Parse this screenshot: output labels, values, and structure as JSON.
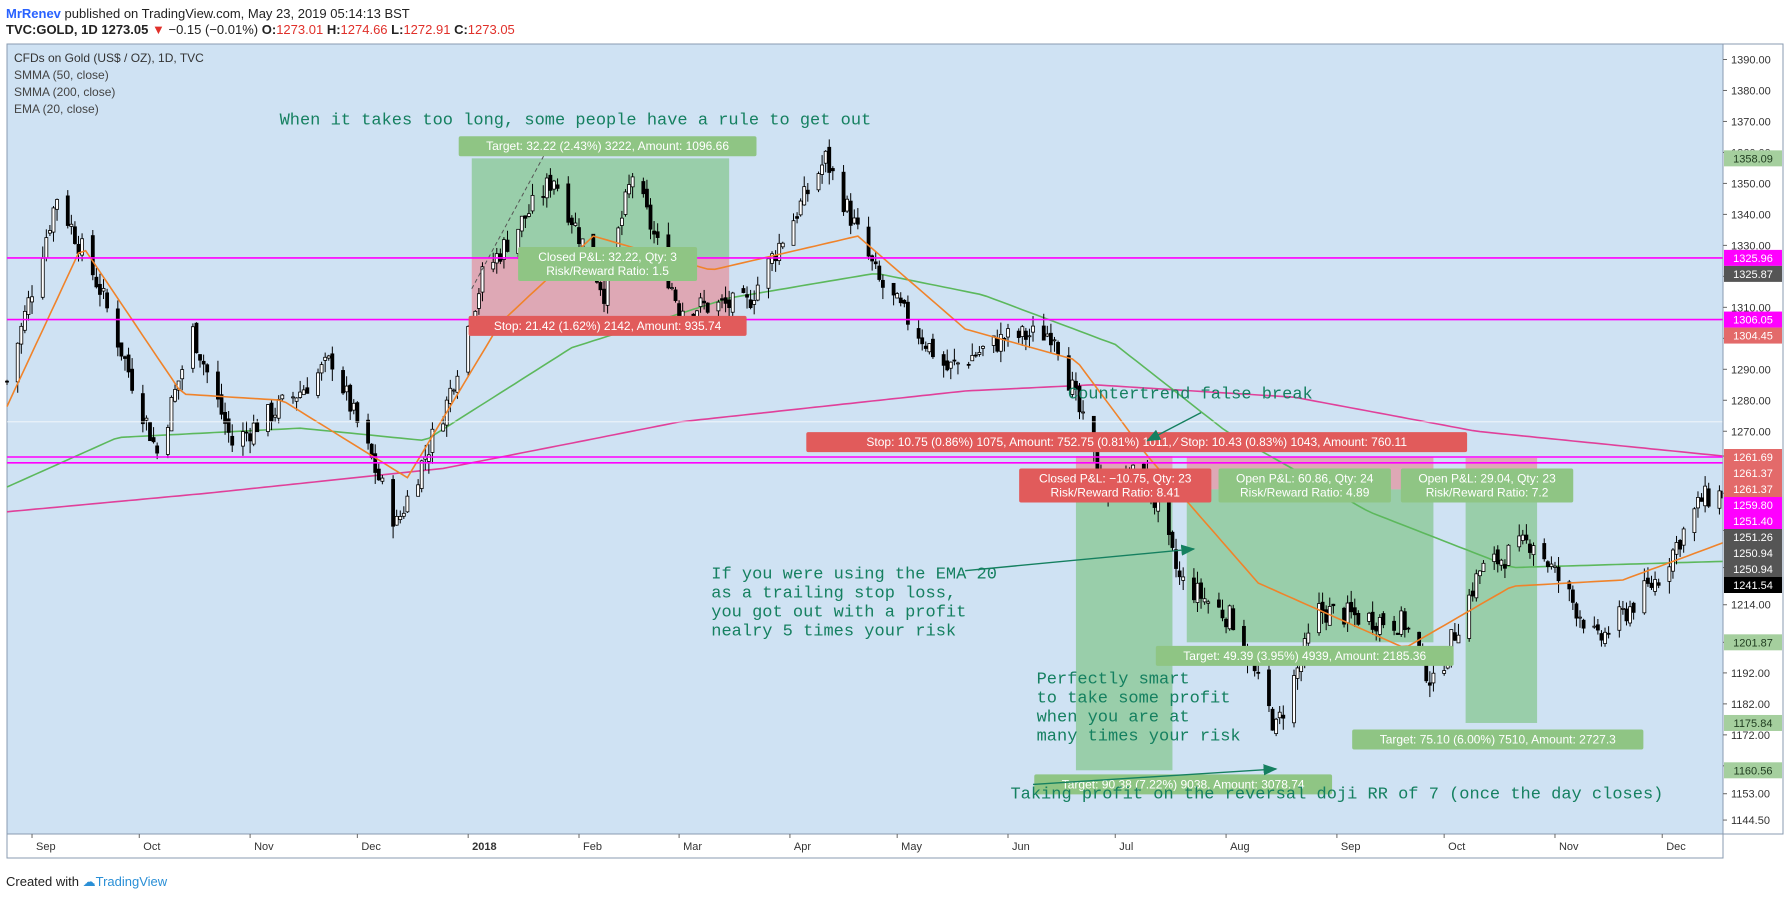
{
  "header": {
    "user": "MrRenev",
    "published": "published on TradingView.com, May 23, 2019 05:14:13 BST",
    "symbol": "TVC:GOLD, 1D",
    "last": "1273.05",
    "change": "−0.15 (−0.01%)",
    "o_label": "O:",
    "o_value": "1273.01",
    "h_label": "H:",
    "h_value": "1274.66",
    "l_label": "L:",
    "l_value": "1272.91",
    "c_label": "C:",
    "c_value": "1273.05"
  },
  "footer": {
    "created": "Created with",
    "brand": "TradingView"
  },
  "colors": {
    "background": "#cfe2f3",
    "candle": "#000000",
    "ema20": "#f0832a",
    "smma50": "#5cb85c",
    "smma200": "#e0409a",
    "level": "#ff00ff",
    "profit_zone": "rgba(110,190,110,0.55)",
    "loss_zone": "rgba(235,120,130,0.55)",
    "annotation": "#158060"
  },
  "chart_data": {
    "type": "candlestick",
    "title": "CFDs on Gold (US$ / OZ), 1D, TVC",
    "indicators": [
      "SMMA (50, close)",
      "SMMA (200, close)",
      "EMA (20, close)"
    ],
    "ylim": [
      1140,
      1395
    ],
    "y_ticks": [
      1144.5,
      1153.0,
      1162.0,
      1172.0,
      1182.0,
      1192.0,
      1201.87,
      1214.0,
      1226.0,
      1238.0,
      1250.0,
      1262.0,
      1270.0,
      1280.0,
      1290.0,
      1300.0,
      1310.0,
      1320.0,
      1330.0,
      1340.0,
      1350.0,
      1360.0,
      1370.0,
      1380.0,
      1390.0
    ],
    "y_tick_labels": [
      "1144.50",
      "1153.00",
      "1162.00",
      "1172.00",
      "1182.00",
      "1192.00",
      "1201.87",
      "1214.00",
      "1226.00",
      "1238.00",
      "1250.00",
      "1262.00",
      "1270.00",
      "1280.00",
      "1290.00",
      "1300.00",
      "1310.00",
      "1320.00",
      "1330.00",
      "1340.00",
      "1350.00",
      "1360.00",
      "1370.00",
      "1380.00",
      "1390.00"
    ],
    "x_range": [
      "2017-08-25",
      "2018-12-18"
    ],
    "x_ticks": [
      {
        "date": "2017-09-01",
        "label": "Sep",
        "bold": false
      },
      {
        "date": "2017-10-01",
        "label": "Oct",
        "bold": false
      },
      {
        "date": "2017-11-01",
        "label": "Nov",
        "bold": false
      },
      {
        "date": "2017-12-01",
        "label": "Dec",
        "bold": false
      },
      {
        "date": "2018-01-01",
        "label": "2018",
        "bold": true
      },
      {
        "date": "2018-02-01",
        "label": "Feb",
        "bold": false
      },
      {
        "date": "2018-03-01",
        "label": "Mar",
        "bold": false
      },
      {
        "date": "2018-04-01",
        "label": "Apr",
        "bold": false
      },
      {
        "date": "2018-05-01",
        "label": "May",
        "bold": false
      },
      {
        "date": "2018-06-01",
        "label": "Jun",
        "bold": false
      },
      {
        "date": "2018-07-01",
        "label": "Jul",
        "bold": false
      },
      {
        "date": "2018-08-01",
        "label": "Aug",
        "bold": false
      },
      {
        "date": "2018-09-01",
        "label": "Sep",
        "bold": false
      },
      {
        "date": "2018-10-01",
        "label": "Oct",
        "bold": false
      },
      {
        "date": "2018-11-01",
        "label": "Nov",
        "bold": false
      },
      {
        "date": "2018-12-01",
        "label": "Dec",
        "bold": false
      }
    ],
    "price_path": [
      {
        "date": "2017-08-25",
        "close": 1286
      },
      {
        "date": "2017-09-08",
        "close": 1346
      },
      {
        "date": "2017-09-20",
        "close": 1316
      },
      {
        "date": "2017-10-06",
        "close": 1263
      },
      {
        "date": "2017-10-16",
        "close": 1302
      },
      {
        "date": "2017-10-27",
        "close": 1266
      },
      {
        "date": "2017-11-15",
        "close": 1283
      },
      {
        "date": "2017-11-24",
        "close": 1293
      },
      {
        "date": "2017-12-12",
        "close": 1240
      },
      {
        "date": "2017-12-26",
        "close": 1279
      },
      {
        "date": "2018-01-05",
        "close": 1320
      },
      {
        "date": "2018-01-25",
        "close": 1352
      },
      {
        "date": "2018-02-08",
        "close": 1315
      },
      {
        "date": "2018-02-16",
        "close": 1353
      },
      {
        "date": "2018-03-01",
        "close": 1310
      },
      {
        "date": "2018-03-20",
        "close": 1311
      },
      {
        "date": "2018-04-11",
        "close": 1358
      },
      {
        "date": "2018-04-26",
        "close": 1318
      },
      {
        "date": "2018-05-15",
        "close": 1290
      },
      {
        "date": "2018-05-31",
        "close": 1300
      },
      {
        "date": "2018-06-14",
        "close": 1302
      },
      {
        "date": "2018-06-28",
        "close": 1250
      },
      {
        "date": "2018-07-09",
        "close": 1258
      },
      {
        "date": "2018-07-19",
        "close": 1222
      },
      {
        "date": "2018-08-03",
        "close": 1209
      },
      {
        "date": "2018-08-15",
        "close": 1174
      },
      {
        "date": "2018-08-27",
        "close": 1212
      },
      {
        "date": "2018-09-20",
        "close": 1208
      },
      {
        "date": "2018-09-28",
        "close": 1188
      },
      {
        "date": "2018-10-11",
        "close": 1225
      },
      {
        "date": "2018-10-26",
        "close": 1235
      },
      {
        "date": "2018-11-13",
        "close": 1202
      },
      {
        "date": "2018-11-30",
        "close": 1223
      },
      {
        "date": "2018-12-12",
        "close": 1248
      },
      {
        "date": "2018-12-18",
        "close": 1250
      }
    ],
    "ema20_path": [
      {
        "date": "2017-08-25",
        "value": 1278
      },
      {
        "date": "2017-09-15",
        "value": 1330
      },
      {
        "date": "2017-10-13",
        "value": 1282
      },
      {
        "date": "2017-11-10",
        "value": 1280
      },
      {
        "date": "2017-12-15",
        "value": 1255
      },
      {
        "date": "2018-01-10",
        "value": 1305
      },
      {
        "date": "2018-02-05",
        "value": 1333
      },
      {
        "date": "2018-03-10",
        "value": 1322
      },
      {
        "date": "2018-04-20",
        "value": 1333
      },
      {
        "date": "2018-05-20",
        "value": 1303
      },
      {
        "date": "2018-06-20",
        "value": 1293
      },
      {
        "date": "2018-07-10",
        "value": 1262
      },
      {
        "date": "2018-08-10",
        "value": 1221
      },
      {
        "date": "2018-09-20",
        "value": 1200
      },
      {
        "date": "2018-10-20",
        "value": 1220
      },
      {
        "date": "2018-11-20",
        "value": 1222
      },
      {
        "date": "2018-12-18",
        "value": 1234
      }
    ],
    "smma50_path": [
      {
        "date": "2017-08-25",
        "value": 1252
      },
      {
        "date": "2017-09-25",
        "value": 1268
      },
      {
        "date": "2017-11-15",
        "value": 1271
      },
      {
        "date": "2017-12-20",
        "value": 1267
      },
      {
        "date": "2018-01-30",
        "value": 1297
      },
      {
        "date": "2018-03-15",
        "value": 1313
      },
      {
        "date": "2018-04-25",
        "value": 1321
      },
      {
        "date": "2018-05-25",
        "value": 1314
      },
      {
        "date": "2018-07-01",
        "value": 1298
      },
      {
        "date": "2018-08-01",
        "value": 1270
      },
      {
        "date": "2018-09-10",
        "value": 1244
      },
      {
        "date": "2018-10-20",
        "value": 1226
      },
      {
        "date": "2018-12-18",
        "value": 1228
      }
    ],
    "smma200_path": [
      {
        "date": "2017-08-25",
        "value": 1244
      },
      {
        "date": "2017-10-20",
        "value": 1250
      },
      {
        "date": "2017-12-25",
        "value": 1258
      },
      {
        "date": "2018-03-01",
        "value": 1273
      },
      {
        "date": "2018-05-20",
        "value": 1283
      },
      {
        "date": "2018-06-25",
        "value": 1285
      },
      {
        "date": "2018-08-20",
        "value": 1281
      },
      {
        "date": "2018-10-10",
        "value": 1270
      },
      {
        "date": "2018-12-18",
        "value": 1262
      }
    ],
    "horizontal_levels": [
      1325.96,
      1306.05,
      1261.69,
      1259.8
    ],
    "zones": [
      {
        "x0": "2018-01-02",
        "x1": "2018-03-15",
        "y0": 1325.96,
        "y1": 1358.09,
        "kind": "profit"
      },
      {
        "x0": "2018-01-02",
        "x1": "2018-03-15",
        "y0": 1304.45,
        "y1": 1325.96,
        "kind": "loss"
      },
      {
        "x0": "2018-06-20",
        "x1": "2018-07-17",
        "y0": 1160.56,
        "y1": 1251.26,
        "kind": "profit"
      },
      {
        "x0": "2018-06-20",
        "x1": "2018-07-17",
        "y0": 1251.26,
        "y1": 1262.0,
        "kind": "loss"
      },
      {
        "x0": "2018-07-21",
        "x1": "2018-09-28",
        "y0": 1201.87,
        "y1": 1251.26,
        "kind": "profit"
      },
      {
        "x0": "2018-07-21",
        "x1": "2018-09-28",
        "y0": 1251.26,
        "y1": 1261.69,
        "kind": "loss"
      },
      {
        "x0": "2018-10-07",
        "x1": "2018-10-27",
        "y0": 1175.84,
        "y1": 1250.94,
        "kind": "profit"
      },
      {
        "x0": "2018-10-07",
        "x1": "2018-10-27",
        "y0": 1250.94,
        "y1": 1261.37,
        "kind": "loss"
      }
    ],
    "price_labels": [
      {
        "value": 1358.09,
        "text": "1358.09",
        "bg": "#a5cf9e",
        "fg": "#1f3b1f"
      },
      {
        "value": 1325.96,
        "text": "1325.96",
        "bg": "#ff00ff",
        "fg": "#ffffff"
      },
      {
        "value": 1325.87,
        "text": "1325.87",
        "bg": "#555555",
        "fg": "#ffffff"
      },
      {
        "value": 1306.05,
        "text": "1306.05",
        "bg": "#ff00ff",
        "fg": "#ffffff"
      },
      {
        "value": 1304.45,
        "text": "1304.45",
        "bg": "#e36a6a",
        "fg": "#ffffff"
      },
      {
        "value": 1261.69,
        "text": "1261.69",
        "bg": "#e36a6a",
        "fg": "#ffffff"
      },
      {
        "value": 1261.37,
        "text": "1261.37",
        "bg": "#e36a6a",
        "fg": "#ffffff"
      },
      {
        "value": 1261.37,
        "text": "1261.37",
        "bg": "#e36a6a",
        "fg": "#ffffff"
      },
      {
        "value": 1259.8,
        "text": "1259.80",
        "bg": "#ff00ff",
        "fg": "#ffffff"
      },
      {
        "value": 1251.4,
        "text": "1251.40",
        "bg": "#ff00ff",
        "fg": "#ffffff"
      },
      {
        "value": 1251.26,
        "text": "1251.26",
        "bg": "#555555",
        "fg": "#ffffff"
      },
      {
        "value": 1250.94,
        "text": "1250.94",
        "bg": "#555555",
        "fg": "#ffffff"
      },
      {
        "value": 1250.94,
        "text": "1250.94",
        "bg": "#555555",
        "fg": "#ffffff"
      },
      {
        "value": 1241.54,
        "text": "1241.54",
        "bg": "#000000",
        "fg": "#ffffff"
      },
      {
        "value": 1201.87,
        "text": "1201.87",
        "bg": "#a5cf9e",
        "fg": "#1f3b1f"
      },
      {
        "value": 1175.84,
        "text": "1175.84",
        "bg": "#a5cf9e",
        "fg": "#1f3b1f"
      },
      {
        "value": 1160.56,
        "text": "1160.56",
        "bg": "#a5cf9e",
        "fg": "#1f3b1f"
      }
    ],
    "tag_labels": [
      {
        "date": "2018-02-09",
        "value": 1362.0,
        "lines": [
          "Target: 32.22 (2.43%) 3222, Amount: 1096.66"
        ],
        "kind": "profit"
      },
      {
        "date": "2018-02-09",
        "value": 1324.0,
        "lines": [
          "Closed P&L: 32.22, Qty: 3",
          "Risk/Reward Ratio: 1.5"
        ],
        "kind": "profit"
      },
      {
        "date": "2018-02-09",
        "value": 1304.0,
        "lines": [
          "Stop: 21.42 (1.62%) 2142, Amount: 935.74"
        ],
        "kind": "loss"
      },
      {
        "date": "2018-07-07",
        "value": 1266.5,
        "lines": [
          "Stop: 10.75 (0.86%) 1075, Amount: 752.75  (0.81%) 1011, ⁄ Stop: 10.43 (0.83%) 1043, Amount: 760.11"
        ],
        "kind": "loss"
      },
      {
        "date": "2018-07-01",
        "value": 1252.5,
        "lines": [
          "Closed P&L: −10.75, Qty: 23",
          "Risk/Reward Ratio: 8.41"
        ],
        "kind": "loss"
      },
      {
        "date": "2018-08-23",
        "value": 1252.5,
        "lines": [
          "Open P&L: 60.86, Qty: 24",
          "Risk/Reward Ratio: 4.89"
        ],
        "kind": "profit"
      },
      {
        "date": "2018-10-13",
        "value": 1252.5,
        "lines": [
          "Open P&L: 29.04, Qty: 23",
          "Risk/Reward Ratio: 7.2"
        ],
        "kind": "profit"
      },
      {
        "date": "2018-08-23",
        "value": 1197.5,
        "lines": [
          "Target: 49.39 (3.95%) 4939, Amount: 2185.36"
        ],
        "kind": "profit"
      },
      {
        "date": "2018-10-16",
        "value": 1170.5,
        "lines": [
          "Target: 75.10 (6.00%) 7510, Amount: 2727.3"
        ],
        "kind": "profit"
      },
      {
        "date": "2018-07-20",
        "value": 1156.0,
        "lines": [
          "Target: 90.38 (7.22%) 9038, Amount: 3078.74"
        ],
        "kind": "profit"
      }
    ],
    "annotations": [
      {
        "date": "2018-01-31",
        "value": 1369.0,
        "anchor": "middle",
        "lines": [
          "When it takes too long, some people have a rule to get out"
        ]
      },
      {
        "date": "2018-07-22",
        "value": 1280.5,
        "anchor": "middle",
        "lines": [
          "Countertrend false break"
        ]
      },
      {
        "date": "2018-03-10",
        "value": 1222.5,
        "anchor": "start",
        "lines": [
          "If you were using the EMA 20",
          "as a trailing stop loss,",
          "you got out with a profit",
          "nealry 5 times your risk"
        ]
      },
      {
        "date": "2018-06-09",
        "value": 1188.5,
        "anchor": "start",
        "lines": [
          "Perfectly smart",
          "to take some profit",
          "when you are at",
          "many times your risk"
        ]
      },
      {
        "date": "2018-09-01",
        "value": 1151.5,
        "anchor": "middle",
        "lines": [
          "Taking profit on the reversal doji RR of 7 (once the day closes)"
        ]
      }
    ]
  }
}
